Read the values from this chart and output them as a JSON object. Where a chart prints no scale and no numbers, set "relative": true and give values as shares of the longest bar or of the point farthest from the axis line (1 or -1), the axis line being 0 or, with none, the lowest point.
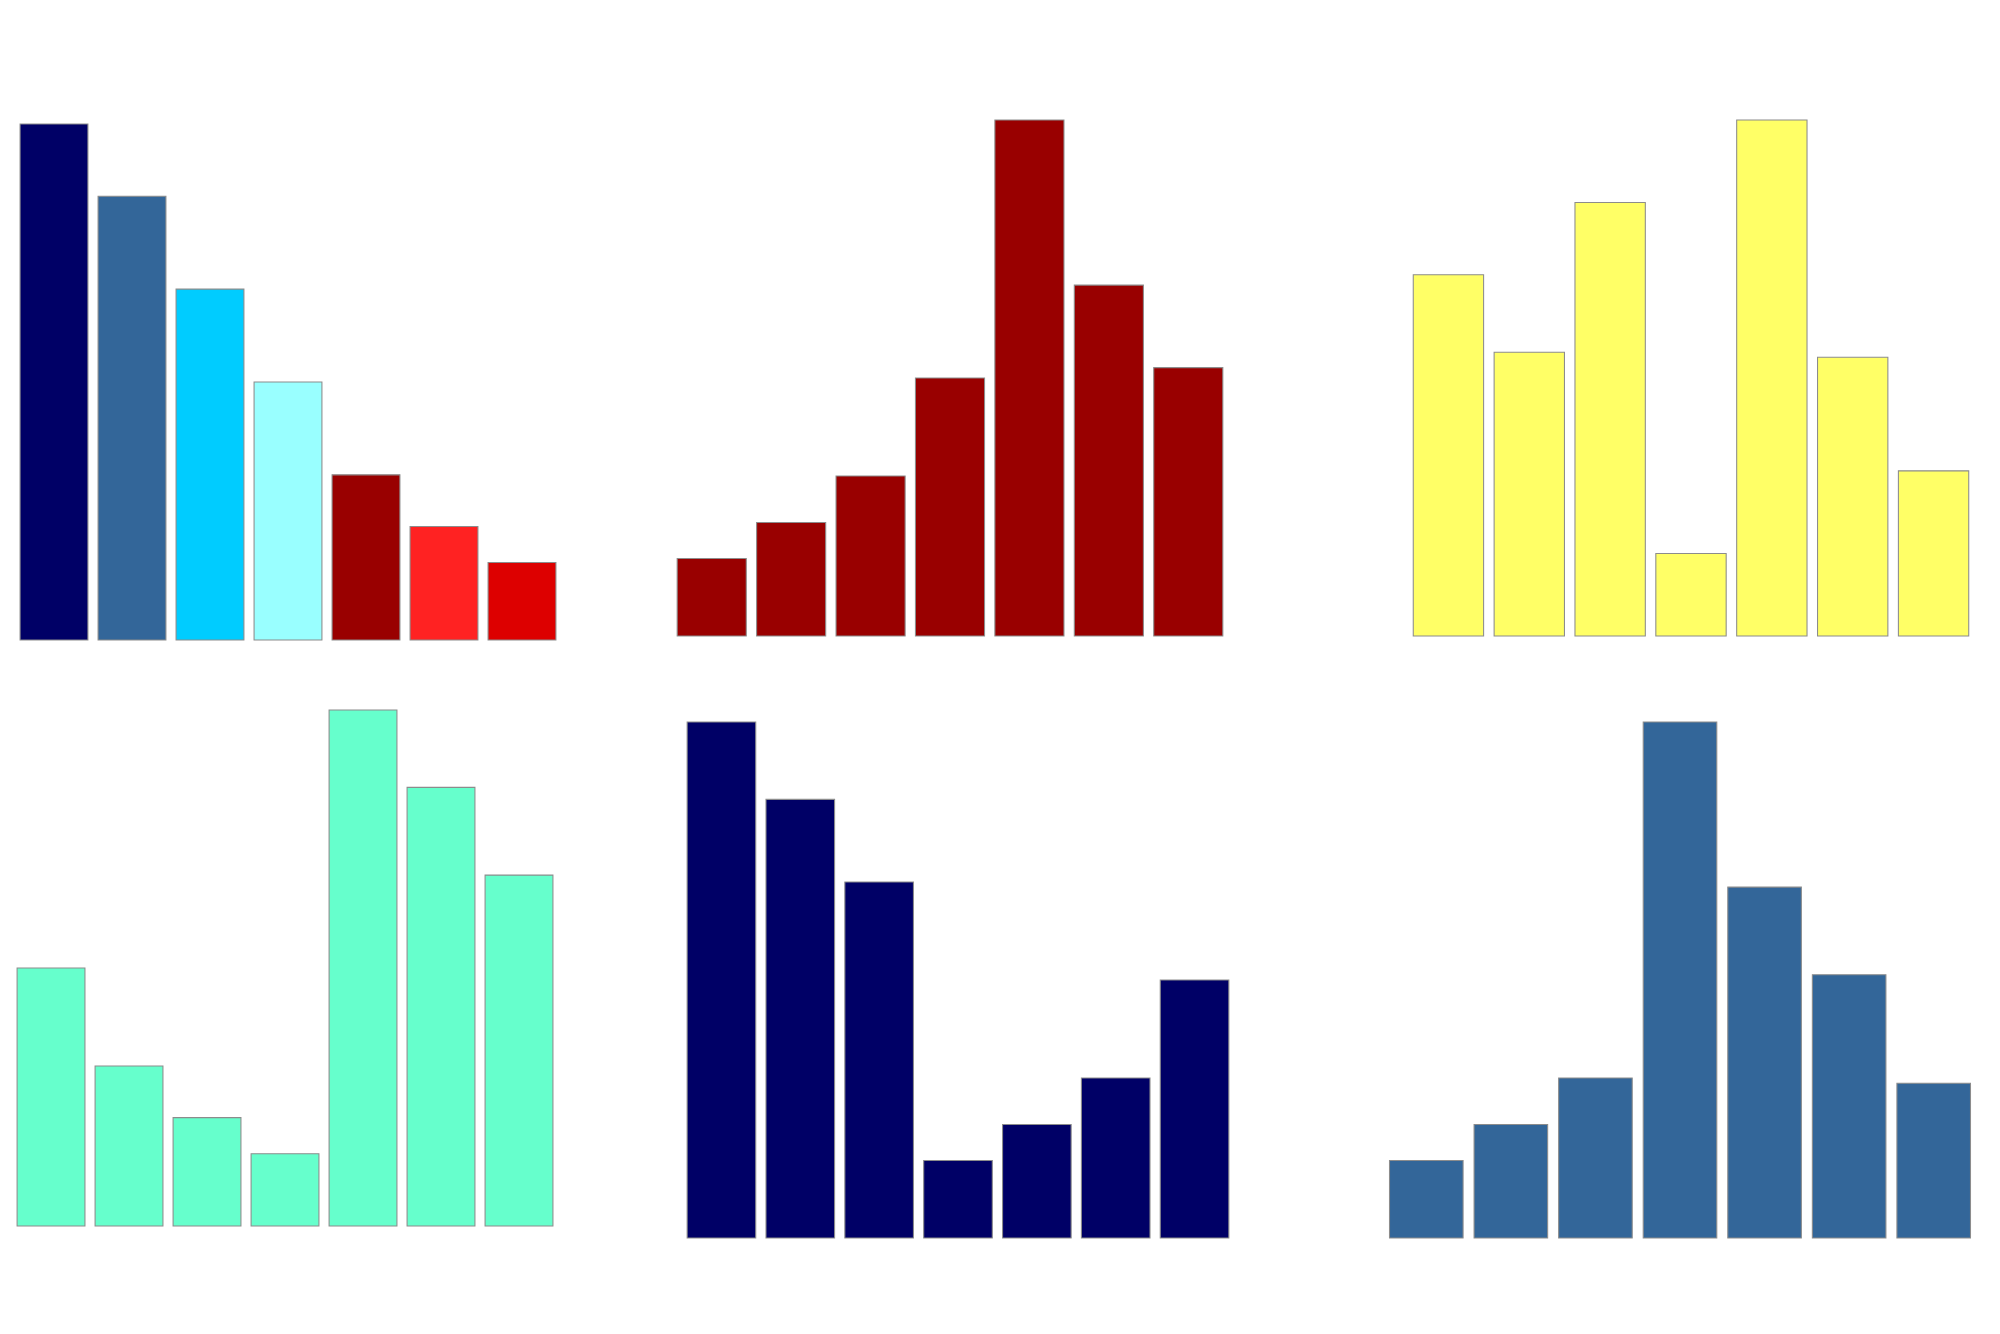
{
  "chart_data": [
    {
      "type": "bar",
      "relative": true,
      "categories": [
        null,
        null,
        null,
        null,
        null,
        null,
        null
      ],
      "values": [
        1,
        0.86,
        0.68,
        0.5,
        0.32,
        0.22,
        0.15
      ],
      "colors": [
        "#000066",
        "#336699",
        "#00ccff",
        "#99ffff",
        "#990000",
        "#ff2222",
        "#dd0000"
      ]
    },
    {
      "type": "bar",
      "relative": true,
      "categories": [
        null,
        null,
        null,
        null,
        null,
        null,
        null
      ],
      "values": [
        0.15,
        0.22,
        0.31,
        0.5,
        1,
        0.68,
        0.52
      ],
      "color": "#990000"
    },
    {
      "type": "bar",
      "relative": true,
      "categories": [
        null,
        null,
        null,
        null,
        null,
        null,
        null
      ],
      "values": [
        0.7,
        0.55,
        0.84,
        0.16,
        1,
        0.54,
        0.32
      ],
      "color": "#ffff66"
    },
    {
      "type": "bar",
      "relative": true,
      "categories": [
        null,
        null,
        null,
        null,
        null,
        null,
        null
      ],
      "values": [
        0.5,
        0.31,
        0.21,
        0.14,
        1,
        0.85,
        0.68
      ],
      "color": "#66ffcc"
    },
    {
      "type": "bar",
      "relative": true,
      "categories": [
        null,
        null,
        null,
        null,
        null,
        null,
        null
      ],
      "values": [
        1,
        0.85,
        0.69,
        0.15,
        0.22,
        0.31,
        0.5
      ],
      "color": "#000066"
    },
    {
      "type": "bar",
      "relative": true,
      "categories": [
        null,
        null,
        null,
        null,
        null,
        null,
        null
      ],
      "values": [
        0.15,
        0.22,
        0.31,
        1,
        0.68,
        0.51,
        0.3
      ],
      "color": "#336699"
    }
  ]
}
